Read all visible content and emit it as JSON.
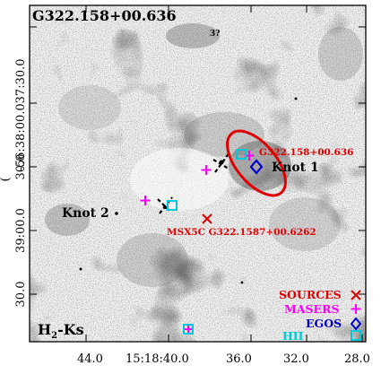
{
  "panel": {
    "title": "G322.158+00.636",
    "band_label_main": "H",
    "band_label_sub": "2",
    "band_label_rest": "-Ks",
    "unlabeled_mark": "3?"
  },
  "axes": {
    "x_tick_labels": [
      "44.0",
      "15:18:40.0",
      "36.0",
      "32.0",
      "28.0"
    ],
    "y_tick_labels": [
      "-56:38:00.037:30.0",
      "30.0",
      "39:00.0",
      "30.0"
    ],
    "y_axis_title_fragment": "("
  },
  "annotations": {
    "knot1": "Knot 1",
    "knot2": "Knot 2",
    "source_label_1": "G322.158+00.636",
    "source_label_2": "MSX5C G322.1587+00.6262"
  },
  "legend": {
    "items": [
      {
        "label": "SOURCES",
        "color": "#e00000",
        "symbol": "x-icon"
      },
      {
        "label": "MASERS",
        "color": "#ff00ff",
        "symbol": "plus-icon"
      },
      {
        "label": "EGOS",
        "color": "#0000cc",
        "symbol": "diamond-icon"
      },
      {
        "label": "HII",
        "color": "#00c8d8",
        "symbol": "square-icon"
      }
    ]
  },
  "colors": {
    "sources": "#e00000",
    "masers": "#ff00ff",
    "egos": "#0000cc",
    "hii": "#00c8d8",
    "ellipse": "#e00000"
  }
}
